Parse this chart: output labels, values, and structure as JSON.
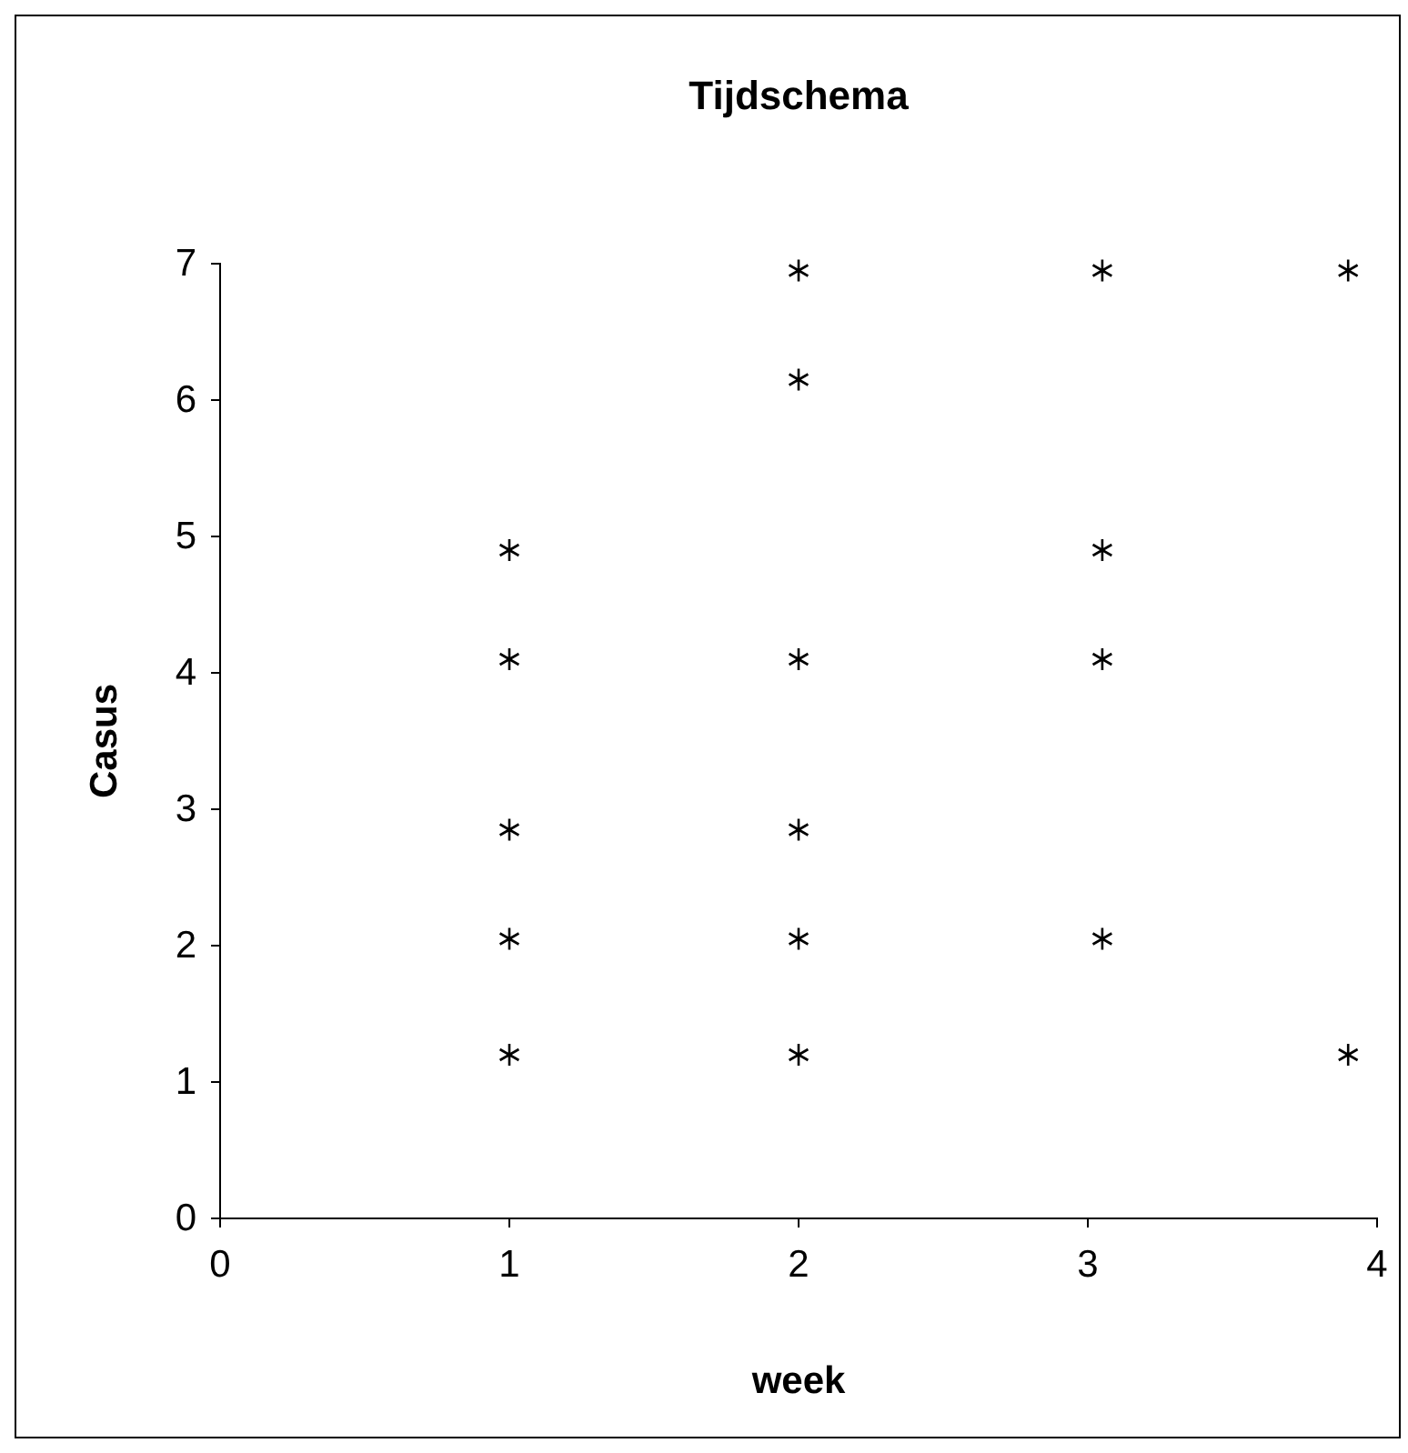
{
  "chart_data": {
    "type": "scatter",
    "title": "Tijdschema",
    "xlabel": "week",
    "ylabel": "Casus",
    "xlim": [
      0,
      4
    ],
    "xticks": [
      0,
      1,
      2,
      3,
      4
    ],
    "ylim": [
      0,
      7
    ],
    "yticks": [
      0,
      1,
      2,
      3,
      4,
      5,
      6,
      7
    ],
    "grid": false,
    "marker": "cross",
    "series": [
      {
        "color": "#000000",
        "x": [
          1,
          1,
          1,
          1,
          1,
          2,
          2,
          2,
          2,
          2,
          2,
          3.05,
          3.05,
          3.05,
          3.05,
          3.9,
          3.9
        ],
        "values": [
          4.9,
          4.1,
          2.85,
          2.05,
          1.2,
          6.95,
          6.15,
          4.1,
          2.85,
          2.05,
          1.2,
          6.95,
          4.9,
          4.1,
          2.05,
          6.95,
          1.2
        ]
      }
    ]
  }
}
